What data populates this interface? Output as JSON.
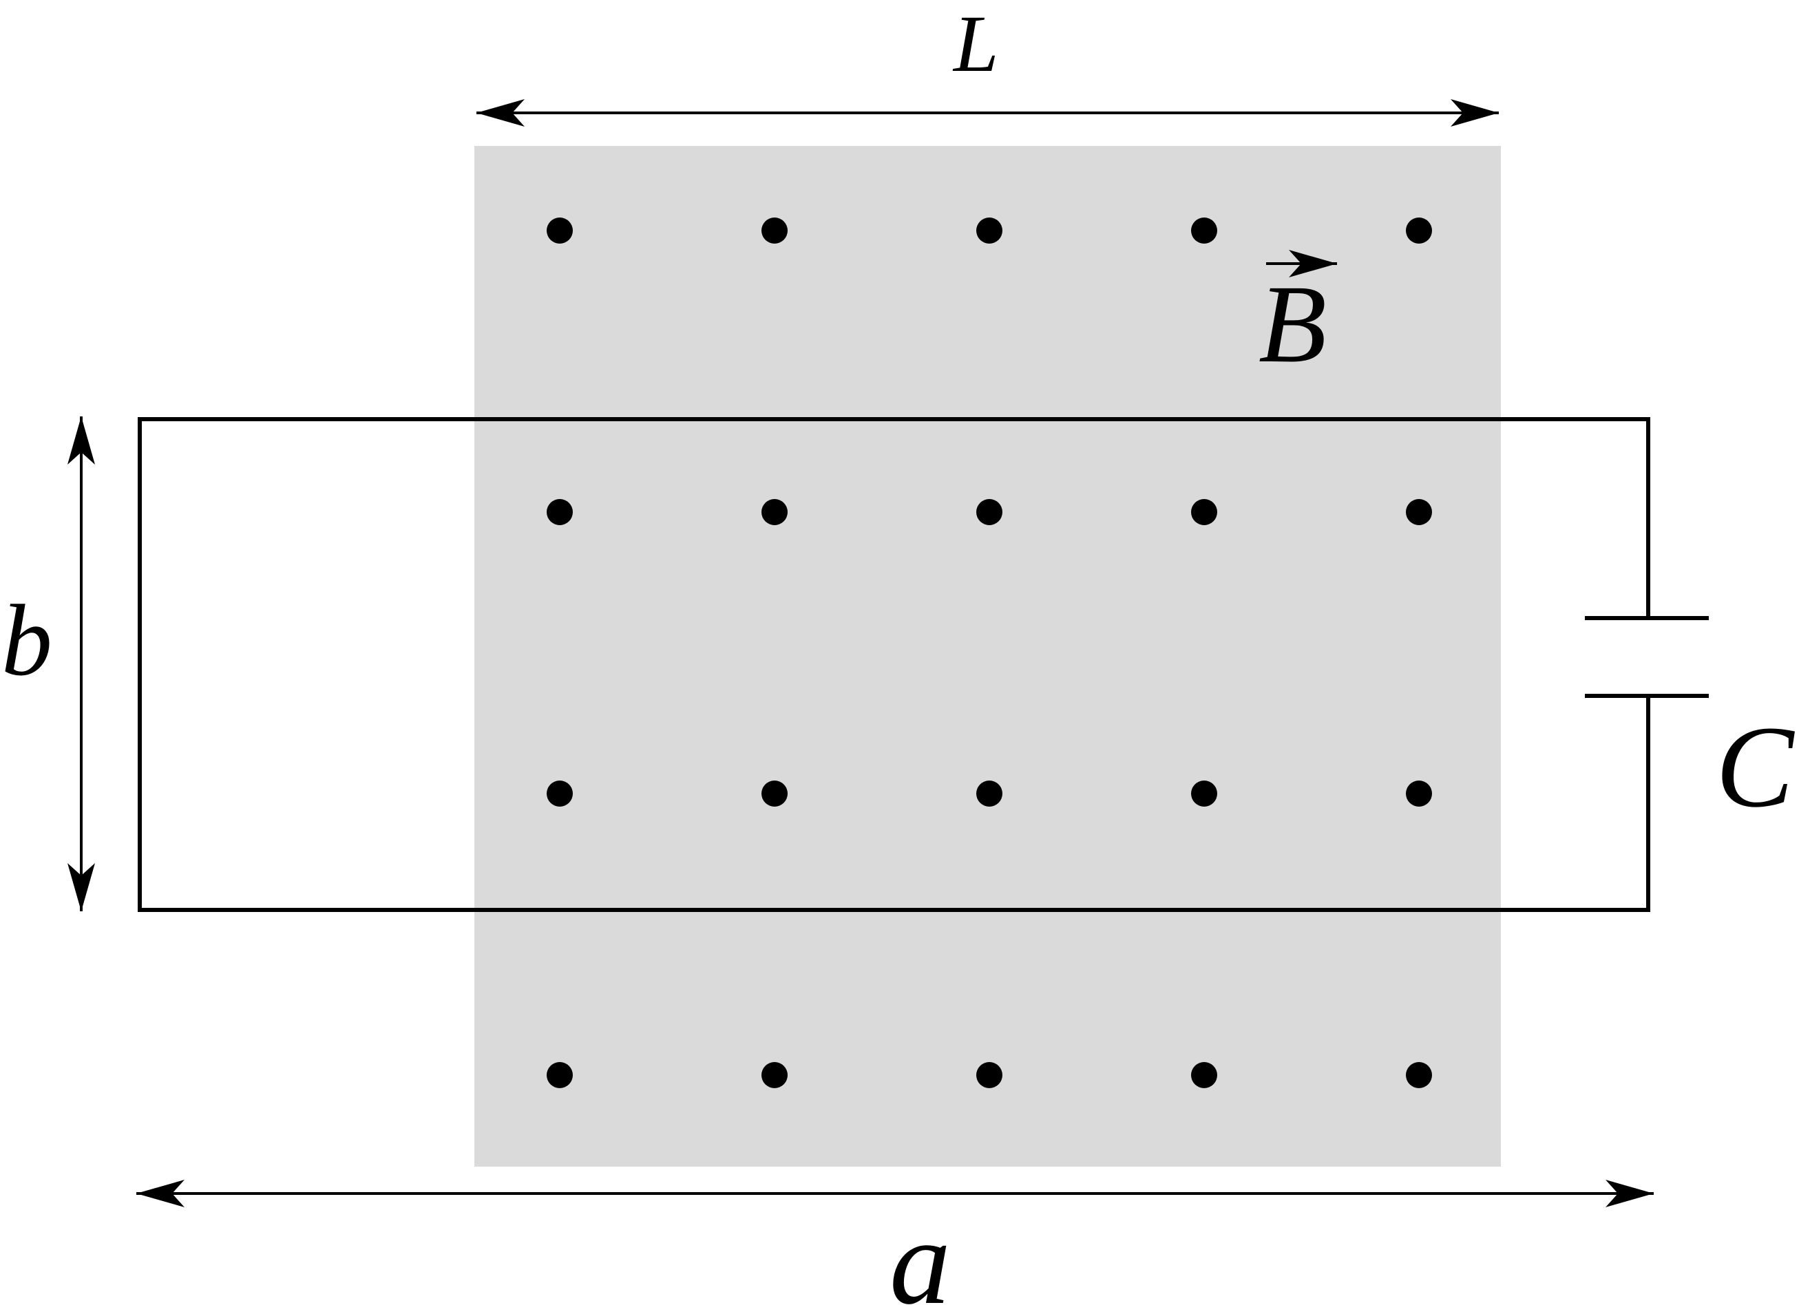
{
  "labels": {
    "length_L": "L",
    "field_B": "B",
    "height_b": "b",
    "width_a": "a",
    "capacitor_C": "C"
  },
  "field": {
    "rows": 4,
    "columns": 5,
    "direction": "out-of-page",
    "region_color": "#dadada"
  },
  "colors": {
    "ink": "#000000",
    "background": "#ffffff"
  }
}
